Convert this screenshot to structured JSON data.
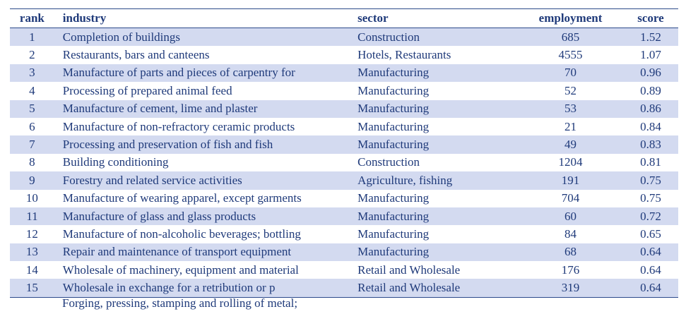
{
  "table": {
    "columns": [
      "rank",
      "industry",
      "sector",
      "employment",
      "score"
    ],
    "rows": [
      {
        "rank": "1",
        "industry": "Completion of buildings",
        "sector": "Construction",
        "employment": "685",
        "score": "1.52"
      },
      {
        "rank": "2",
        "industry": "Restaurants, bars and canteens",
        "sector": "Hotels, Restaurants",
        "employment": "4555",
        "score": "1.07"
      },
      {
        "rank": "3",
        "industry": "Manufacture of parts and pieces of carpentry for",
        "sector": "Manufacturing",
        "employment": "70",
        "score": "0.96"
      },
      {
        "rank": "4",
        "industry": "Processing of prepared animal feed",
        "sector": "Manufacturing",
        "employment": "52",
        "score": "0.89"
      },
      {
        "rank": "5",
        "industry": "Manufacture of cement, lime and plaster",
        "sector": "Manufacturing",
        "employment": "53",
        "score": "0.86"
      },
      {
        "rank": "6",
        "industry": "Manufacture of non-refractory ceramic products",
        "sector": "Manufacturing",
        "employment": "21",
        "score": "0.84"
      },
      {
        "rank": "7",
        "industry": "Processing and preservation of fish and fish",
        "sector": "Manufacturing",
        "employment": "49",
        "score": "0.83"
      },
      {
        "rank": "8",
        "industry": "Building conditioning",
        "sector": "Construction",
        "employment": "1204",
        "score": "0.81"
      },
      {
        "rank": "9",
        "industry": "Forestry and related service activities",
        "sector": "Agriculture, fishing",
        "employment": "191",
        "score": "0.75"
      },
      {
        "rank": "10",
        "industry": "Manufacture of wearing apparel, except garments",
        "sector": "Manufacturing",
        "employment": "704",
        "score": "0.75"
      },
      {
        "rank": "11",
        "industry": "Manufacture of glass and glass products",
        "sector": "Manufacturing",
        "employment": "60",
        "score": "0.72"
      },
      {
        "rank": "12",
        "industry": "Manufacture of non-alcoholic beverages; bottling",
        "sector": "Manufacturing",
        "employment": "84",
        "score": "0.65"
      },
      {
        "rank": "13",
        "industry": "Repair and maintenance of transport equipment",
        "sector": "Manufacturing",
        "employment": "68",
        "score": "0.64"
      },
      {
        "rank": "14",
        "industry": "Wholesale of machinery, equipment and material",
        "sector": "Retail and Wholesale",
        "employment": "176",
        "score": "0.64"
      },
      {
        "rank": "15",
        "industry": "Wholesale in exchange for a retribution or p",
        "sector": "Retail and Wholesale",
        "employment": "319",
        "score": "0.64"
      }
    ],
    "overflow_text": "Forging, pressing, stamping and rolling of metal;"
  },
  "colors": {
    "text": "#1f3a7a",
    "row_shade": "#d3daf0",
    "rule": "#2c4a8a"
  }
}
